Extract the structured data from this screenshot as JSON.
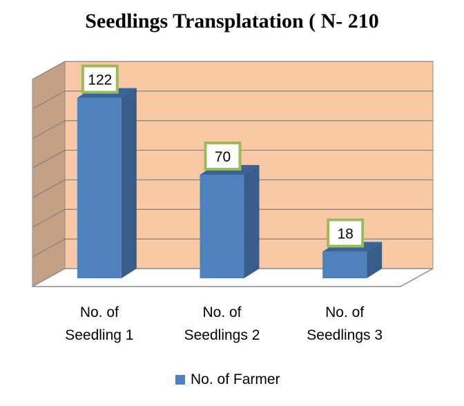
{
  "chart_data": {
    "type": "bar",
    "title": "Seedlings Transplatation ( N- 210",
    "categories": [
      [
        "No. of",
        "Seedling 1"
      ],
      [
        "No. of",
        "Seedlings 2"
      ],
      [
        "No. of",
        "Seedlings 3"
      ]
    ],
    "series": [
      {
        "name": "No. of Farmer",
        "values": [
          122,
          70,
          18
        ]
      }
    ],
    "ylim": [
      0,
      140
    ],
    "grid": true,
    "legend_position": "bottom",
    "colors": {
      "bar_front": "#4f81bd",
      "bar_side": "#385d8a",
      "bar_top": "#3a6396",
      "wall_back": "#f9c9a6",
      "wall_side": "#c4a184",
      "label_border": "#9bbb59"
    }
  }
}
